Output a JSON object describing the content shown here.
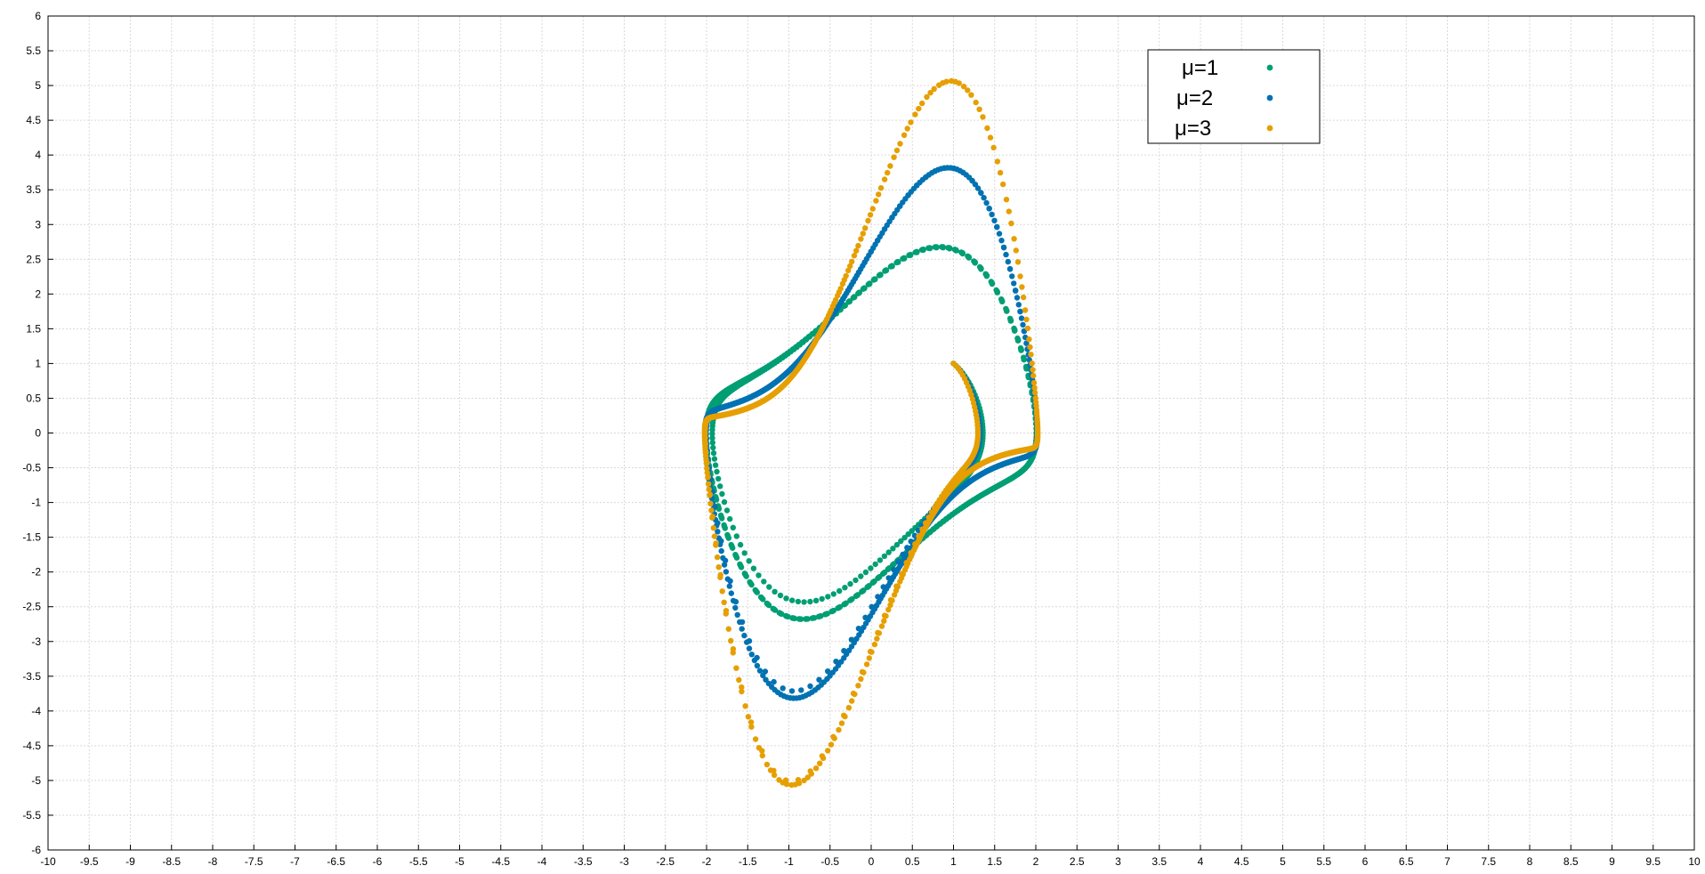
{
  "chart_data": {
    "type": "scatter",
    "title": "",
    "xlabel": "",
    "ylabel": "",
    "xlim": [
      -10,
      10
    ],
    "ylim": [
      -6,
      6
    ],
    "grid": true,
    "legend_placement": "top-right",
    "x_ticks": [
      "-10",
      "-9.5",
      "-9",
      "-8.5",
      "-8",
      "-7.5",
      "-7",
      "-6.5",
      "-6",
      "-5.5",
      "-5",
      "-4.5",
      "-4",
      "-3.5",
      "-3",
      "-2.5",
      "-2",
      "-1.5",
      "-1",
      "-0.5",
      "0",
      "0.5",
      "1",
      "1.5",
      "2",
      "2.5",
      "3",
      "3.5",
      "4",
      "4.5",
      "5",
      "5.5",
      "6",
      "6.5",
      "7",
      "7.5",
      "8",
      "8.5",
      "9",
      "9.5",
      "10"
    ],
    "y_ticks": [
      "6",
      "5.5",
      "5",
      "4.5",
      "4",
      "3.5",
      "3",
      "2.5",
      "2",
      "1.5",
      "1",
      "0.5",
      "0",
      "-0.5",
      "-1",
      "-1.5",
      "-2",
      "-2.5",
      "-3",
      "-3.5",
      "-4",
      "-4.5",
      "-5",
      "-5.5",
      "-6"
    ],
    "initial_point": {
      "x": 1,
      "y": 1
    },
    "series": [
      {
        "name": "μ=1",
        "mu": 1,
        "color": "#009e73"
      },
      {
        "name": "μ=2",
        "mu": 2,
        "color": "#0072b2"
      },
      {
        "name": "μ=3",
        "mu": 3,
        "color": "#e69f00"
      }
    ]
  }
}
